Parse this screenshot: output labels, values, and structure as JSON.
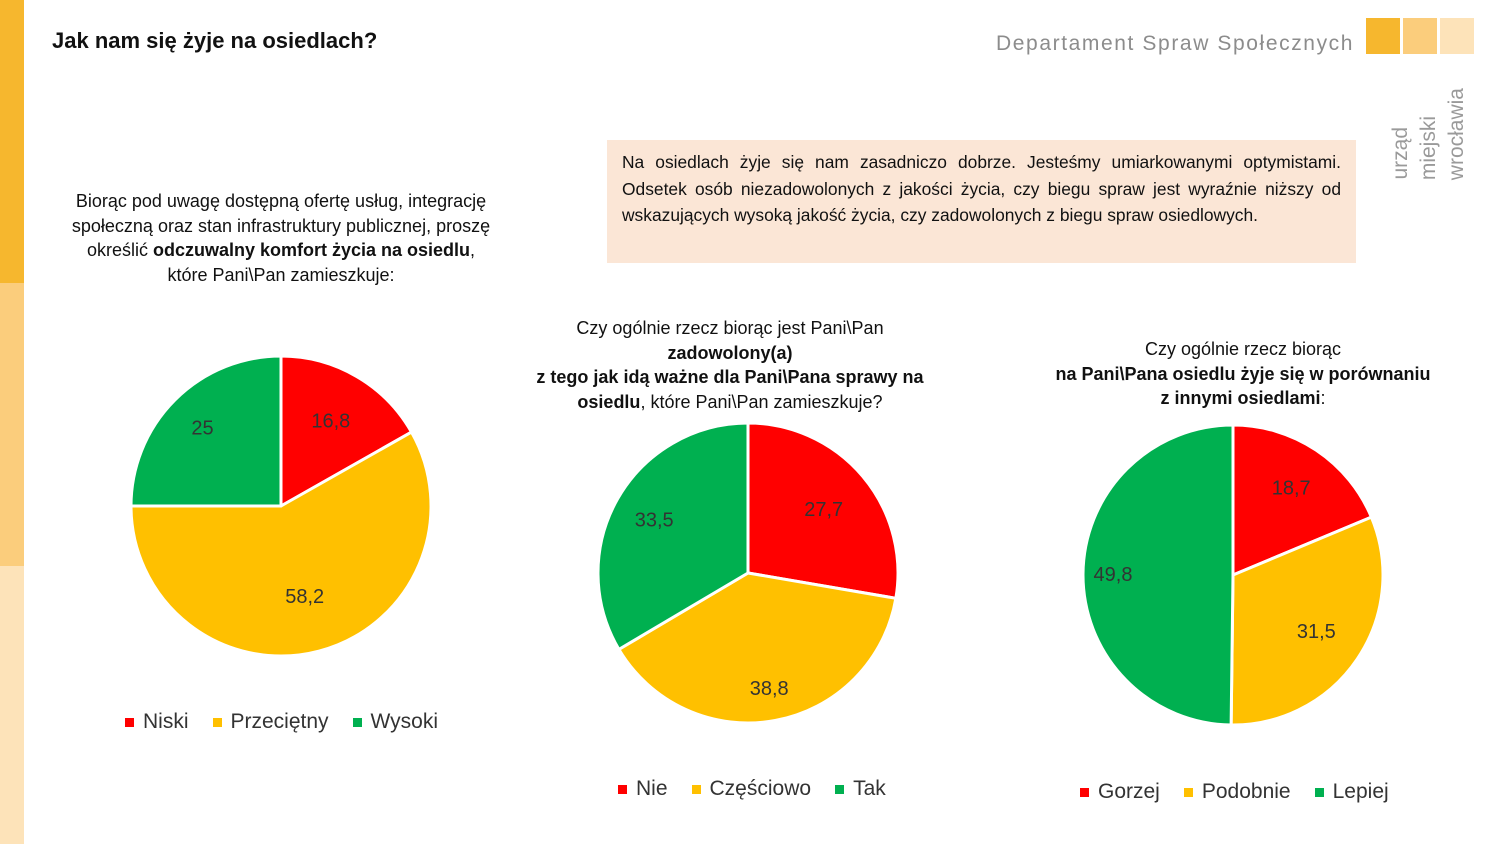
{
  "header": {
    "title": "Jak nam się żyje na osiedlach?",
    "department": "Departament Spraw Społecznych",
    "logo_lines": [
      "urząd",
      "miejski",
      "wrocławia"
    ]
  },
  "summary_note": "Na osiedlach żyje się nam zasadniczo dobrze. Jesteśmy umiarkowanymi optymistami. Odsetek osób niezadowolonych z jakości życia, czy biegu spraw jest wyraźnie niższy od wskazujących wysoką jakość życia, czy zadowolonych z biegu spraw osiedlowych.",
  "questions": {
    "q1": {
      "part1": "Biorąc pod uwagę dostępną ofertę usług, integrację społeczną oraz stan infrastruktury publicznej, proszę określić ",
      "bold": "odczuwalny komfort życia na osiedlu",
      "part2": ", które Pani\\Pan zamieszkuje:"
    },
    "q2": {
      "line1": "Czy ogólnie rzecz biorąc jest Pani\\Pan",
      "bold1": "zadowolony(a)",
      "bold2": "z tego jak idą ważne dla Pani\\Pana sprawy na osiedlu",
      "tail": ", które Pani\\Pan zamieszkuje?"
    },
    "q3": {
      "line1": "Czy ogólnie rzecz biorąc",
      "bold1": "na Pani\\Pana osiedlu żyje się w porównaniu",
      "bold2": "z innymi osiedlami",
      "tail": ":"
    }
  },
  "colors": {
    "red": "#ff0000",
    "yellow": "#ffc000",
    "green": "#00b050"
  },
  "chart_data": [
    {
      "type": "pie",
      "categories": [
        "Niski",
        "Przeciętny",
        "Wysoki"
      ],
      "values": [
        16.8,
        58.2,
        25
      ],
      "labels": [
        "16,8",
        "58,2",
        "25"
      ],
      "colors": [
        "#ff0000",
        "#ffc000",
        "#00b050"
      ],
      "legend": [
        "Niski",
        "Przeciętny",
        "Wysoki"
      ],
      "legend_position": "bottom"
    },
    {
      "type": "pie",
      "categories": [
        "Nie",
        "Częściowo",
        "Tak"
      ],
      "values": [
        27.7,
        38.8,
        33.5
      ],
      "labels": [
        "27,7",
        "38,8",
        "33,5"
      ],
      "colors": [
        "#ff0000",
        "#ffc000",
        "#00b050"
      ],
      "legend": [
        "Nie",
        "Częściowo",
        "Tak"
      ],
      "legend_position": "bottom"
    },
    {
      "type": "pie",
      "categories": [
        "Gorzej",
        "Podobnie",
        "Lepiej"
      ],
      "values": [
        18.7,
        31.5,
        49.8
      ],
      "labels": [
        "18,7",
        "31,5",
        "49,8"
      ],
      "colors": [
        "#ff0000",
        "#ffc000",
        "#00b050"
      ],
      "legend": [
        "Gorzej",
        "Podobnie",
        "Lepiej"
      ],
      "legend_position": "bottom"
    }
  ]
}
